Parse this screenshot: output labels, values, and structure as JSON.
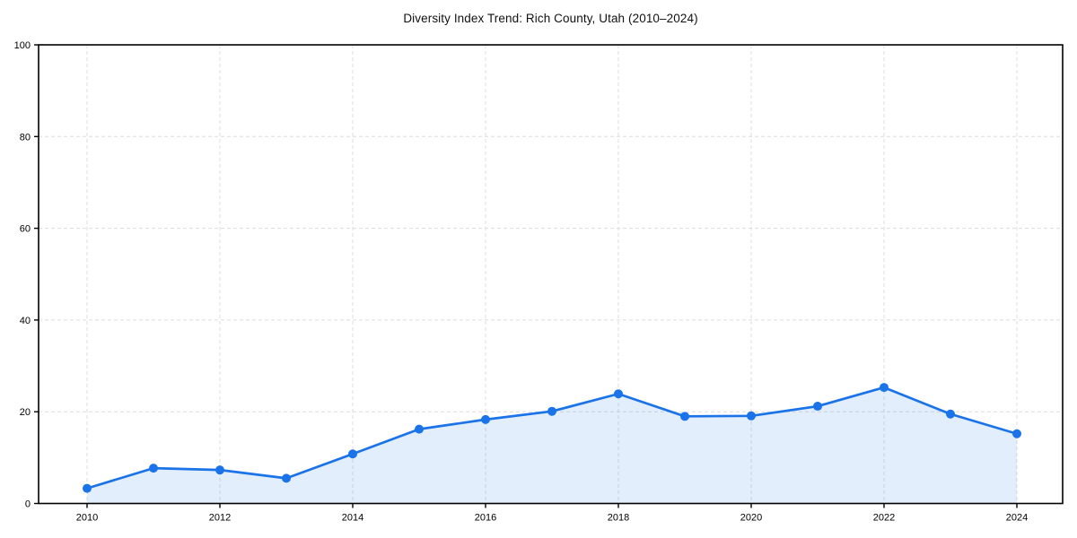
{
  "page": {
    "background": "#ffffff"
  },
  "chart_data": {
    "type": "line",
    "title": "Diversity Index Trend: Rich County, Utah (2010–2024)",
    "xlabel": "",
    "ylabel": "",
    "x": [
      2010,
      2011,
      2012,
      2013,
      2014,
      2015,
      2016,
      2017,
      2018,
      2019,
      2020,
      2021,
      2022,
      2023,
      2024
    ],
    "series": [
      {
        "name": "Diversity Index",
        "values": [
          3.3,
          7.7,
          7.3,
          5.5,
          10.8,
          16.2,
          18.3,
          20.1,
          23.9,
          19.0,
          19.1,
          21.2,
          25.3,
          19.5,
          15.2
        ]
      }
    ],
    "ylim": [
      0,
      100
    ],
    "yticks": [
      0,
      20,
      40,
      60,
      80,
      100
    ],
    "xticks": [
      2010,
      2012,
      2014,
      2016,
      2018,
      2020,
      2022,
      2024
    ],
    "grid": true,
    "grid_style": "dashed",
    "legend": false,
    "area_fill": true,
    "markers": true,
    "colors": {
      "line": "#1a73e8",
      "marker": "#1a73e8",
      "fill": "#1a73e8",
      "fill_opacity": "0.12",
      "grid": "#dcdcdc",
      "spine": "#000000",
      "tick_label": "#000000",
      "title": "#111111"
    }
  }
}
